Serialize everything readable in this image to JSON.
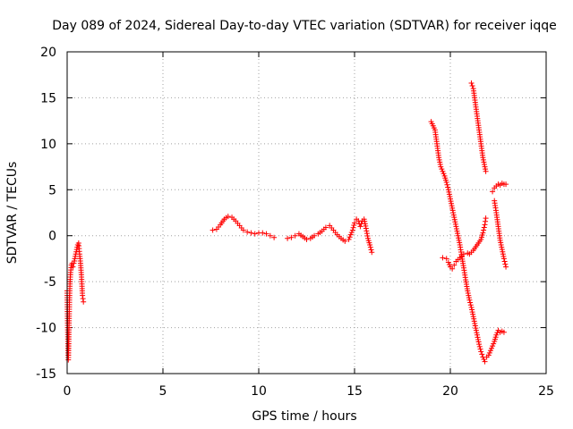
{
  "chart_data": {
    "type": "scatter",
    "title": "Day 089 of 2024, Sidereal Day-to-day VTEC variation (SDTVAR) for receiver iqqe",
    "xlabel": "GPS time / hours",
    "ylabel": "SDTVAR / TECUs",
    "xlim": [
      0,
      25
    ],
    "ylim": [
      -15,
      20
    ],
    "xticks": [
      "0",
      "5",
      "10",
      "15",
      "20",
      "25"
    ],
    "yticks": [
      "-15",
      "-10",
      "-5",
      "0",
      "5",
      "10",
      "15",
      "20"
    ],
    "grid": true,
    "marker": "plus",
    "color": "#ff0000",
    "series": [
      {
        "segments": [
          [
            [
              0.0,
              -6.0
            ],
            [
              0.02,
              -9.0
            ],
            [
              0.04,
              -11.5
            ],
            [
              0.06,
              -13.5
            ],
            [
              0.08,
              -12.0
            ],
            [
              0.1,
              -9.5
            ],
            [
              0.12,
              -7.0
            ],
            [
              0.15,
              -5.0
            ],
            [
              0.18,
              -4.0
            ],
            [
              0.22,
              -3.2
            ],
            [
              0.26,
              -3.0
            ],
            [
              0.3,
              -3.4
            ],
            [
              0.35,
              -3.0
            ],
            [
              0.4,
              -2.5
            ],
            [
              0.45,
              -2.0
            ],
            [
              0.5,
              -1.5
            ],
            [
              0.55,
              -1.0
            ],
            [
              0.6,
              -0.8
            ],
            [
              0.65,
              -2.0
            ],
            [
              0.7,
              -3.0
            ],
            [
              0.75,
              -4.5
            ],
            [
              0.8,
              -6.5
            ],
            [
              0.85,
              -7.2
            ]
          ],
          [
            [
              7.6,
              0.6
            ],
            [
              7.8,
              0.7
            ],
            [
              8.0,
              1.2
            ],
            [
              8.2,
              1.8
            ],
            [
              8.4,
              2.1
            ],
            [
              8.6,
              2.0
            ],
            [
              8.8,
              1.6
            ],
            [
              9.0,
              1.1
            ],
            [
              9.2,
              0.6
            ],
            [
              9.4,
              0.4
            ],
            [
              9.6,
              0.3
            ],
            [
              9.8,
              0.2
            ],
            [
              10.0,
              0.3
            ],
            [
              10.2,
              0.3
            ],
            [
              10.4,
              0.2
            ],
            [
              10.6,
              0.0
            ],
            [
              10.8,
              -0.2
            ]
          ],
          [
            [
              11.5,
              -0.3
            ],
            [
              11.7,
              -0.2
            ],
            [
              11.9,
              0.0
            ],
            [
              12.1,
              0.2
            ],
            [
              12.3,
              -0.1
            ],
            [
              12.5,
              -0.4
            ],
            [
              12.7,
              -0.3
            ],
            [
              12.9,
              0.0
            ],
            [
              13.1,
              0.2
            ],
            [
              13.3,
              0.5
            ],
            [
              13.5,
              0.9
            ],
            [
              13.7,
              1.1
            ],
            [
              13.9,
              0.6
            ],
            [
              14.1,
              0.1
            ],
            [
              14.3,
              -0.3
            ],
            [
              14.5,
              -0.6
            ],
            [
              14.7,
              -0.4
            ],
            [
              14.9,
              0.6
            ],
            [
              15.0,
              1.4
            ],
            [
              15.1,
              1.8
            ],
            [
              15.2,
              1.6
            ],
            [
              15.3,
              1.0
            ],
            [
              15.4,
              1.6
            ],
            [
              15.5,
              1.8
            ],
            [
              15.6,
              0.8
            ],
            [
              15.7,
              -0.3
            ],
            [
              15.8,
              -1.0
            ],
            [
              15.9,
              -1.8
            ]
          ],
          [
            [
              19.0,
              12.4
            ],
            [
              19.2,
              11.5
            ],
            [
              19.3,
              10.0
            ],
            [
              19.4,
              8.5
            ],
            [
              19.5,
              7.5
            ],
            [
              19.6,
              7.0
            ],
            [
              19.7,
              6.5
            ],
            [
              19.8,
              5.8
            ],
            [
              19.9,
              5.0
            ],
            [
              20.0,
              4.0
            ],
            [
              20.1,
              3.0
            ],
            [
              20.2,
              2.0
            ],
            [
              20.3,
              1.0
            ],
            [
              20.4,
              0.0
            ],
            [
              20.5,
              -1.0
            ],
            [
              20.6,
              -2.3
            ],
            [
              20.7,
              -3.5
            ],
            [
              20.8,
              -4.8
            ],
            [
              20.9,
              -6.0
            ],
            [
              21.0,
              -7.0
            ],
            [
              21.1,
              -7.8
            ],
            [
              21.2,
              -8.8
            ],
            [
              21.3,
              -9.8
            ],
            [
              21.4,
              -10.8
            ],
            [
              21.5,
              -11.8
            ],
            [
              21.6,
              -12.6
            ],
            [
              21.7,
              -13.2
            ],
            [
              21.8,
              -13.7
            ]
          ],
          [
            [
              19.6,
              -2.4
            ],
            [
              19.8,
              -2.5
            ],
            [
              19.9,
              -2.9
            ],
            [
              20.0,
              -3.4
            ],
            [
              20.1,
              -3.6
            ],
            [
              20.2,
              -3.2
            ],
            [
              20.3,
              -2.8
            ],
            [
              20.5,
              -2.4
            ],
            [
              20.7,
              -2.0
            ],
            [
              20.9,
              -1.9
            ],
            [
              21.0,
              -2.0
            ],
            [
              21.2,
              -1.6
            ],
            [
              21.4,
              -1.0
            ],
            [
              21.6,
              -0.4
            ],
            [
              21.7,
              0.3
            ],
            [
              21.8,
              1.2
            ],
            [
              21.85,
              1.9
            ]
          ],
          [
            [
              21.1,
              16.6
            ],
            [
              21.2,
              16.0
            ],
            [
              21.3,
              14.5
            ],
            [
              21.4,
              13.0
            ],
            [
              21.5,
              11.5
            ],
            [
              21.6,
              10.0
            ],
            [
              21.7,
              8.5
            ],
            [
              21.8,
              7.5
            ],
            [
              21.85,
              7.0
            ]
          ],
          [
            [
              21.9,
              -13.2
            ],
            [
              22.0,
              -13.0
            ],
            [
              22.1,
              -12.5
            ],
            [
              22.2,
              -12.0
            ],
            [
              22.3,
              -11.5
            ],
            [
              22.4,
              -10.8
            ],
            [
              22.5,
              -10.3
            ],
            [
              22.6,
              -10.5
            ],
            [
              22.7,
              -10.4
            ],
            [
              22.8,
              -10.5
            ]
          ],
          [
            [
              22.2,
              4.8
            ],
            [
              22.3,
              5.2
            ],
            [
              22.4,
              5.4
            ],
            [
              22.5,
              5.6
            ],
            [
              22.6,
              5.5
            ],
            [
              22.7,
              5.7
            ],
            [
              22.8,
              5.6
            ],
            [
              22.9,
              5.6
            ]
          ],
          [
            [
              22.3,
              3.8
            ],
            [
              22.4,
              2.5
            ],
            [
              22.5,
              1.0
            ],
            [
              22.6,
              -0.5
            ],
            [
              22.7,
              -1.5
            ],
            [
              22.8,
              -2.5
            ],
            [
              22.9,
              -3.4
            ]
          ]
        ]
      }
    ]
  }
}
